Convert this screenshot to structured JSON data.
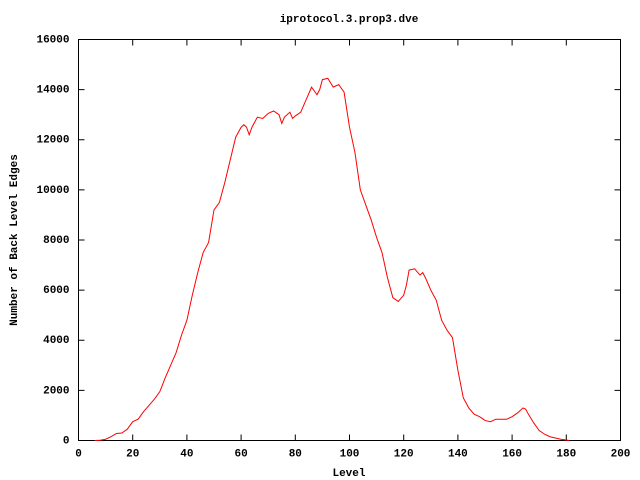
{
  "chart_data": {
    "type": "line",
    "title": "iprotocol.3.prop3.dve",
    "x_label": "Level",
    "y_label": "Number of Back Level Edges",
    "xlim": [
      0,
      200
    ],
    "xticks": [
      0,
      20,
      40,
      60,
      80,
      100,
      120,
      140,
      160,
      180,
      200
    ],
    "ylim": [
      0,
      16000
    ],
    "yticks": [
      0,
      2000,
      4000,
      6000,
      8000,
      10000,
      12000,
      14000,
      16000
    ],
    "grid": false,
    "series": [
      {
        "color": "#ff0000",
        "x": [
          6,
          8,
          10,
          12,
          14,
          16,
          18,
          20,
          22,
          24,
          26,
          28,
          30,
          32,
          34,
          36,
          38,
          40,
          42,
          44,
          46,
          48,
          50,
          52,
          54,
          56,
          58,
          60,
          61,
          62,
          63,
          64,
          66,
          68,
          70,
          72,
          74,
          75,
          76,
          78,
          79,
          80,
          82,
          84,
          86,
          88,
          89,
          90,
          92,
          94,
          96,
          98,
          100,
          102,
          104,
          106,
          108,
          110,
          112,
          114,
          116,
          118,
          120,
          121,
          122,
          124,
          126,
          127,
          128,
          130,
          132,
          134,
          136,
          138,
          140,
          142,
          144,
          146,
          148,
          150,
          152,
          154,
          156,
          158,
          160,
          162,
          164,
          165,
          166,
          168,
          170,
          172,
          174,
          176,
          178,
          180,
          181
        ],
        "values": [
          0,
          10,
          50,
          150,
          280,
          300,
          450,
          750,
          850,
          1150,
          1400,
          1650,
          1950,
          2500,
          3000,
          3500,
          4200,
          4800,
          5800,
          6700,
          7500,
          7900,
          9200,
          9500,
          10300,
          11200,
          12100,
          12500,
          12600,
          12500,
          12200,
          12500,
          12900,
          12850,
          13050,
          13150,
          13000,
          12650,
          12900,
          13100,
          12850,
          12950,
          13100,
          13600,
          14100,
          13800,
          14000,
          14400,
          14450,
          14100,
          14200,
          13900,
          12500,
          11500,
          10000,
          9400,
          8800,
          8100,
          7500,
          6500,
          5700,
          5550,
          5800,
          6200,
          6800,
          6850,
          6600,
          6700,
          6500,
          6000,
          5600,
          4800,
          4400,
          4100,
          2800,
          1700,
          1300,
          1050,
          950,
          800,
          750,
          850,
          850,
          850,
          950,
          1100,
          1300,
          1250,
          1050,
          700,
          400,
          250,
          150,
          100,
          50,
          20,
          0
        ]
      }
    ]
  }
}
